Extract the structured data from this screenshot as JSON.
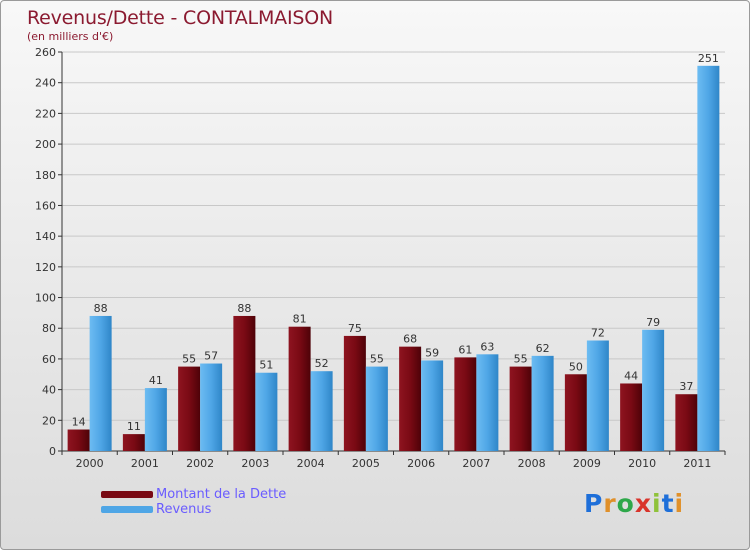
{
  "title": "Revenus/Dette - CONTALMAISON",
  "subtitle": "(en milliers d'€)",
  "logo": {
    "letters": [
      "P",
      "r",
      "o",
      "x",
      "i",
      "t",
      "i"
    ],
    "colors": [
      "#1e6fd9",
      "#e0902a",
      "#2ea84a",
      "#d9342b",
      "#8fc23a",
      "#1e6fd9",
      "#e0902a"
    ]
  },
  "colors": {
    "dette": "#7a0a14",
    "revenus": "#4fa6e6",
    "grid": "#c8c8c8",
    "axis": "#333333",
    "text": "#333333"
  },
  "chart_data": {
    "type": "bar",
    "title": "Revenus/Dette - CONTALMAISON",
    "subtitle": "(en milliers d'€)",
    "categories": [
      "2000",
      "2001",
      "2002",
      "2003",
      "2004",
      "2005",
      "2006",
      "2007",
      "2008",
      "2009",
      "2010",
      "2011"
    ],
    "series": [
      {
        "name": "Montant de la Dette",
        "values": [
          14,
          11,
          55,
          88,
          81,
          75,
          68,
          61,
          55,
          50,
          44,
          37
        ]
      },
      {
        "name": "Revenus",
        "values": [
          88,
          41,
          57,
          51,
          52,
          55,
          59,
          63,
          62,
          72,
          79,
          251
        ]
      }
    ],
    "ylim": [
      0,
      260
    ],
    "yticks": [
      0,
      20,
      40,
      60,
      80,
      100,
      120,
      140,
      160,
      180,
      200,
      220,
      240,
      260
    ],
    "grid": true,
    "legend_position": "bottom-left"
  }
}
